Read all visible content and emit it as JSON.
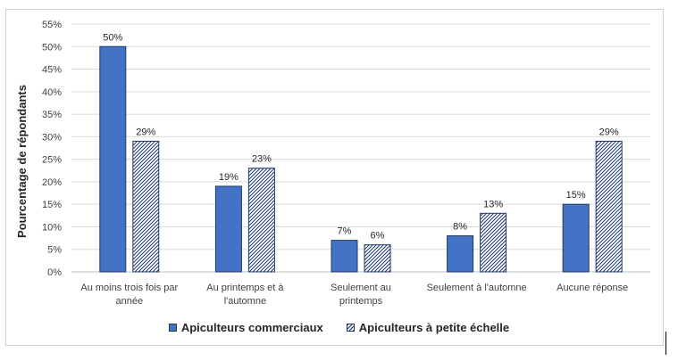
{
  "chart_data": {
    "type": "bar",
    "ylabel": "Pourcentage de répondants",
    "ylim": [
      0,
      55
    ],
    "yticks": [
      "0%",
      "5%",
      "10%",
      "15%",
      "20%",
      "25%",
      "30%",
      "35%",
      "40%",
      "45%",
      "50%",
      "55%"
    ],
    "categories": [
      [
        "Au moins trois fois par",
        "année"
      ],
      [
        "Au printemps et à",
        "l'automne"
      ],
      [
        "Seulement au",
        "printemps"
      ],
      [
        "Seulement à l'automne"
      ],
      [
        "Aucune réponse"
      ]
    ],
    "series": [
      {
        "name": "Apiculteurs commerciaux",
        "values": [
          50,
          19,
          7,
          8,
          15
        ],
        "labels": [
          "50%",
          "19%",
          "7%",
          "8%",
          "15%"
        ],
        "color": "#4472c4",
        "pattern": "solid"
      },
      {
        "name": "Apiculteurs à petite échelle",
        "values": [
          29,
          23,
          6,
          13,
          29
        ],
        "labels": [
          "29%",
          "23%",
          "6%",
          "13%",
          "29%"
        ],
        "color": "#1f3864",
        "pattern": "hatch"
      }
    ],
    "grid": true,
    "legend_position": "bottom"
  }
}
